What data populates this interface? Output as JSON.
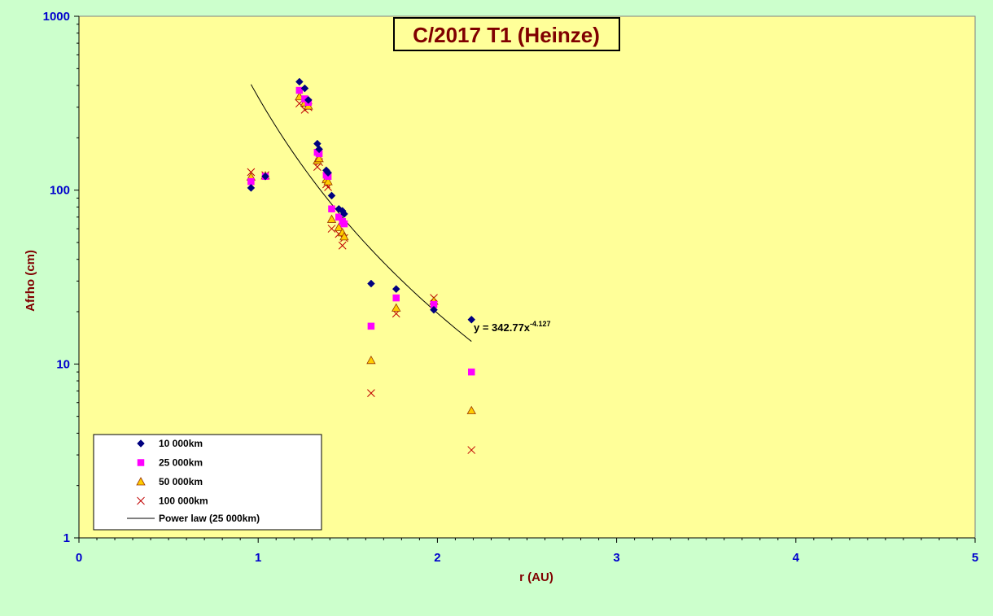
{
  "colors": {
    "outer_bg": "#ccffcc",
    "plot_bg": "#ffff99",
    "axis_text": "#0000cc",
    "label_text": "#800000",
    "series_10000": "#000080",
    "series_25000": "#ff00ff",
    "series_50000_fill": "#ffcc00",
    "series_50000_edge": "#993300",
    "series_100000": "#c00000",
    "fit_line": "#000000"
  },
  "chart_data": {
    "type": "scatter",
    "title": "C/2017 T1 (Heinze)",
    "xlabel": "r (AU)",
    "ylabel": "Afrho (cm)",
    "xlim": [
      0,
      5
    ],
    "ylim": [
      1,
      1000
    ],
    "yscale": "log",
    "x_ticks": [
      "0",
      "1",
      "2",
      "3",
      "4",
      "5"
    ],
    "y_ticks": [
      "1",
      "10",
      "100",
      "1000"
    ],
    "legend_position": "bottom-left",
    "series": [
      {
        "name": "10 000km",
        "marker": "diamond",
        "points": [
          [
            0.96,
            103
          ],
          [
            1.04,
            120
          ],
          [
            1.23,
            420
          ],
          [
            1.26,
            385
          ],
          [
            1.28,
            330
          ],
          [
            1.33,
            185
          ],
          [
            1.34,
            172
          ],
          [
            1.38,
            130
          ],
          [
            1.39,
            126
          ],
          [
            1.41,
            93
          ],
          [
            1.45,
            78
          ],
          [
            1.47,
            76
          ],
          [
            1.48,
            73
          ],
          [
            1.63,
            29
          ],
          [
            1.77,
            27
          ],
          [
            1.98,
            20.5
          ],
          [
            2.19,
            18
          ]
        ]
      },
      {
        "name": "25 000km",
        "marker": "square",
        "points": [
          [
            0.96,
            112
          ],
          [
            1.04,
            120
          ],
          [
            1.23,
            375
          ],
          [
            1.26,
            335
          ],
          [
            1.28,
            320
          ],
          [
            1.33,
            165
          ],
          [
            1.34,
            162
          ],
          [
            1.38,
            122
          ],
          [
            1.39,
            120
          ],
          [
            1.41,
            78
          ],
          [
            1.45,
            70
          ],
          [
            1.47,
            66
          ],
          [
            1.48,
            64
          ],
          [
            1.63,
            16.5
          ],
          [
            1.77,
            24
          ],
          [
            1.98,
            22
          ],
          [
            2.19,
            9
          ]
        ]
      },
      {
        "name": "50 000km",
        "marker": "triangle",
        "points": [
          [
            0.96,
            119
          ],
          [
            1.04,
            121
          ],
          [
            1.23,
            345
          ],
          [
            1.26,
            318
          ],
          [
            1.28,
            305
          ],
          [
            1.33,
            148
          ],
          [
            1.34,
            152
          ],
          [
            1.38,
            115
          ],
          [
            1.39,
            112
          ],
          [
            1.41,
            68
          ],
          [
            1.45,
            61
          ],
          [
            1.47,
            57
          ],
          [
            1.48,
            54
          ],
          [
            1.63,
            10.5
          ],
          [
            1.77,
            21
          ],
          [
            1.98,
            23
          ],
          [
            2.19,
            5.4
          ]
        ]
      },
      {
        "name": "100 000km",
        "marker": "x",
        "points": [
          [
            0.96,
            127
          ],
          [
            1.04,
            122
          ],
          [
            1.23,
            315
          ],
          [
            1.26,
            290
          ],
          [
            1.28,
            300
          ],
          [
            1.33,
            136
          ],
          [
            1.34,
            145
          ],
          [
            1.38,
            108
          ],
          [
            1.39,
            104
          ],
          [
            1.41,
            60
          ],
          [
            1.45,
            56
          ],
          [
            1.47,
            48
          ],
          [
            1.48,
            53
          ],
          [
            1.63,
            6.8
          ],
          [
            1.77,
            19.5
          ],
          [
            1.98,
            24
          ],
          [
            2.19,
            3.2
          ]
        ]
      }
    ],
    "fit": {
      "name": "Power law (25 000km)",
      "coef": 342.77,
      "exponent": -4.127,
      "x_range": [
        0.96,
        2.19
      ],
      "label_prefix": "y = 342.77x",
      "label_exponent": "-4.127"
    }
  }
}
